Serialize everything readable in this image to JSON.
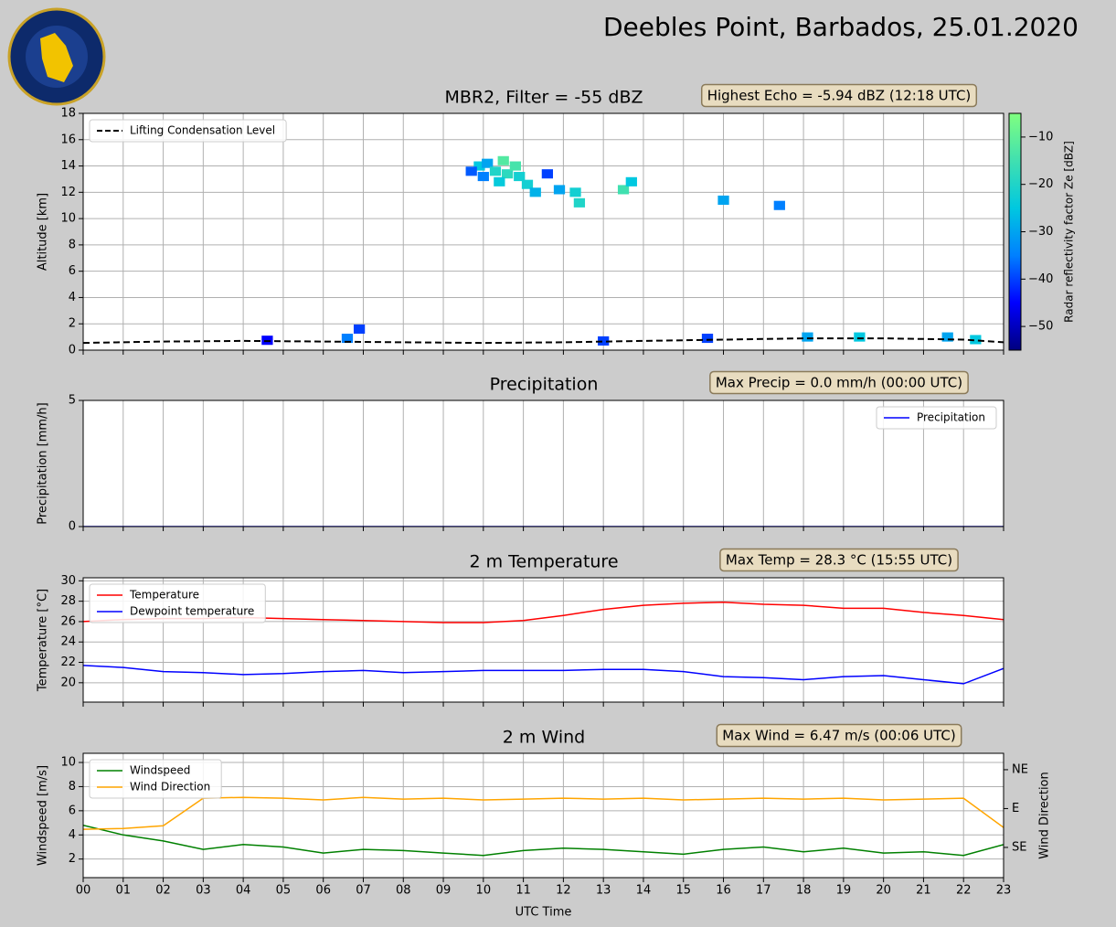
{
  "header": {
    "title": "Deebles Point, Barbados, 25.01.2020"
  },
  "chart_data": [
    {
      "type": "heatmap",
      "title": "MBR2, Filter = -55 dBZ",
      "annotation": "Highest Echo = -5.94 dBZ (12:18 UTC)",
      "ylabel": "Altitude [km]",
      "colorbar_label": "Radar reflectivity factor Ze [dBZ]",
      "xlim": [
        0,
        23
      ],
      "xticks": [
        0,
        1,
        2,
        3,
        4,
        5,
        6,
        7,
        8,
        9,
        10,
        11,
        12,
        13,
        14,
        15,
        16,
        17,
        18,
        19,
        20,
        21,
        22,
        23
      ],
      "ylim": [
        0,
        18
      ],
      "yticks": [
        0,
        2,
        4,
        6,
        8,
        10,
        12,
        14,
        16,
        18
      ],
      "zlim": [
        -55,
        -5
      ],
      "zticks": [
        {
          "value": -10,
          "label": "−10"
        },
        {
          "value": -20,
          "label": "−20"
        },
        {
          "value": -30,
          "label": "−30"
        },
        {
          "value": -40,
          "label": "−40"
        },
        {
          "value": -50,
          "label": "−50"
        }
      ],
      "colormap": [
        "#00007f",
        "#0000ff",
        "#0080ff",
        "#00c8e0",
        "#40e0b0",
        "#80ff80"
      ],
      "grid": true,
      "legend": "upper left",
      "echoes": {
        "x": [
          9.9,
          10.1,
          10.3,
          10.5,
          10.6,
          10.8,
          10.9,
          11.1,
          11.3,
          10.0,
          11.6,
          11.9,
          12.3,
          12.4,
          13.5,
          13.7,
          16.0,
          17.4,
          6.6,
          6.9,
          18.1,
          19.4,
          21.6,
          22.3,
          4.6,
          13.0,
          15.6,
          10.4,
          9.7
        ],
        "y": [
          14.0,
          14.2,
          13.6,
          14.4,
          13.4,
          14.0,
          13.2,
          12.6,
          12.0,
          13.2,
          13.4,
          12.2,
          12.0,
          11.2,
          12.2,
          12.8,
          11.4,
          11.0,
          0.9,
          1.6,
          1.0,
          1.0,
          1.0,
          0.8,
          0.75,
          0.7,
          0.9,
          12.8,
          13.6
        ],
        "values": [
          -25,
          -30,
          -20,
          -12,
          -18,
          -14,
          -22,
          -22,
          -28,
          -35,
          -40,
          -30,
          -22,
          -20,
          -15,
          -25,
          -30,
          -35,
          -35,
          -40,
          -30,
          -25,
          -30,
          -25,
          -45,
          -40,
          -40,
          -24,
          -38
        ]
      },
      "x": [
        0,
        2,
        4,
        6,
        8,
        10,
        12,
        14,
        16,
        18,
        20,
        22,
        23
      ],
      "series": [
        {
          "name": "Lifting Condensation Level",
          "color": "#000000",
          "dash": true,
          "values": [
            0.55,
            0.65,
            0.7,
            0.65,
            0.6,
            0.55,
            0.6,
            0.7,
            0.8,
            0.9,
            0.9,
            0.8,
            0.6
          ]
        }
      ]
    },
    {
      "type": "line",
      "title": "Precipitation",
      "annotation": "Max Precip = 0.0 mm/h (00:00 UTC)",
      "ylabel": "Precipitation [mm/h]",
      "xlim": [
        0,
        23
      ],
      "xticks": [
        0,
        1,
        2,
        3,
        4,
        5,
        6,
        7,
        8,
        9,
        10,
        11,
        12,
        13,
        14,
        15,
        16,
        17,
        18,
        19,
        20,
        21,
        22,
        23
      ],
      "ylim": [
        0,
        5
      ],
      "yticks": [
        0,
        5
      ],
      "grid": true,
      "legend": "upper right",
      "x": [
        0,
        23
      ],
      "series": [
        {
          "name": "Precipitation",
          "color": "#0000ff",
          "values": [
            0,
            0
          ]
        }
      ]
    },
    {
      "type": "line",
      "title": "2 m Temperature",
      "annotation": "Max Temp = 28.3 °C (15:55 UTC)",
      "ylabel": "Temperature [°C]",
      "xlim": [
        0,
        23
      ],
      "xticks": [
        0,
        1,
        2,
        3,
        4,
        5,
        6,
        7,
        8,
        9,
        10,
        11,
        12,
        13,
        14,
        15,
        16,
        17,
        18,
        19,
        20,
        21,
        22,
        23
      ],
      "ylim": [
        18.1,
        30.3
      ],
      "yticks": [
        20,
        22,
        24,
        26,
        28,
        30
      ],
      "grid": true,
      "legend": "upper left",
      "x": [
        0,
        1,
        2,
        3,
        4,
        5,
        6,
        7,
        8,
        9,
        10,
        11,
        12,
        13,
        14,
        15,
        16,
        17,
        18,
        19,
        20,
        21,
        22,
        23
      ],
      "series": [
        {
          "name": "Temperature",
          "color": "#ff0000",
          "values": [
            26.0,
            26.2,
            26.3,
            26.3,
            26.4,
            26.3,
            26.2,
            26.1,
            26.0,
            25.9,
            25.9,
            26.1,
            26.6,
            27.2,
            27.6,
            27.8,
            27.9,
            27.7,
            27.6,
            27.3,
            27.3,
            26.9,
            26.6,
            26.2
          ]
        },
        {
          "name": "Dewpoint temperature",
          "color": "#0000ff",
          "values": [
            21.7,
            21.5,
            21.1,
            21.0,
            20.8,
            20.9,
            21.1,
            21.2,
            21.0,
            21.1,
            21.2,
            21.2,
            21.2,
            21.3,
            21.3,
            21.1,
            20.6,
            20.5,
            20.3,
            20.6,
            20.7,
            20.3,
            19.9,
            21.4
          ]
        }
      ]
    },
    {
      "type": "line",
      "title": "2 m Wind",
      "annotation": "Max Wind = 6.47 m/s (00:06 UTC)",
      "ylabel": "Windspeed [m/s]",
      "y2label": "Wind Direction",
      "xlabel": "UTC Time",
      "xlim": [
        0,
        23
      ],
      "xticks": [
        {
          "value": 0,
          "label": "00"
        },
        {
          "value": 1,
          "label": "01"
        },
        {
          "value": 2,
          "label": "02"
        },
        {
          "value": 3,
          "label": "03"
        },
        {
          "value": 4,
          "label": "04"
        },
        {
          "value": 5,
          "label": "05"
        },
        {
          "value": 6,
          "label": "06"
        },
        {
          "value": 7,
          "label": "07"
        },
        {
          "value": 8,
          "label": "08"
        },
        {
          "value": 9,
          "label": "09"
        },
        {
          "value": 10,
          "label": "10"
        },
        {
          "value": 11,
          "label": "11"
        },
        {
          "value": 12,
          "label": "12"
        },
        {
          "value": 13,
          "label": "13"
        },
        {
          "value": 14,
          "label": "14"
        },
        {
          "value": 15,
          "label": "15"
        },
        {
          "value": 16,
          "label": "16"
        },
        {
          "value": 17,
          "label": "17"
        },
        {
          "value": 18,
          "label": "18"
        },
        {
          "value": 19,
          "label": "19"
        },
        {
          "value": 20,
          "label": "20"
        },
        {
          "value": 21,
          "label": "21"
        },
        {
          "value": 22,
          "label": "22"
        },
        {
          "value": 23,
          "label": "23"
        }
      ],
      "ylim": [
        0.46,
        10.76
      ],
      "yticks": [
        2,
        4,
        6,
        8,
        10
      ],
      "y2lim": [
        170,
        26
      ],
      "y2ticks": [
        {
          "value": 45,
          "label": "NE"
        },
        {
          "value": 90,
          "label": "E"
        },
        {
          "value": 135,
          "label": "SE"
        }
      ],
      "grid": true,
      "legend": "upper left",
      "x": [
        0,
        1,
        2,
        3,
        4,
        5,
        6,
        7,
        8,
        9,
        10,
        11,
        12,
        13,
        14,
        15,
        16,
        17,
        18,
        19,
        20,
        21,
        22,
        23
      ],
      "series": [
        {
          "name": "Windspeed",
          "color": "#008000",
          "values": [
            4.8,
            4.0,
            3.5,
            2.8,
            3.2,
            3.0,
            2.5,
            2.8,
            2.7,
            2.5,
            2.3,
            2.7,
            2.9,
            2.8,
            2.6,
            2.4,
            2.8,
            3.0,
            2.6,
            2.9,
            2.5,
            2.6,
            2.3,
            3.2
          ]
        },
        {
          "name": "Wind Direction",
          "color": "#ffa500",
          "axis": "y2",
          "values": [
            114,
            113,
            110,
            78,
            77,
            78,
            80,
            77,
            79,
            78,
            80,
            79,
            78,
            79,
            78,
            80,
            79,
            78,
            79,
            78,
            80,
            79,
            78,
            112
          ]
        }
      ]
    }
  ]
}
